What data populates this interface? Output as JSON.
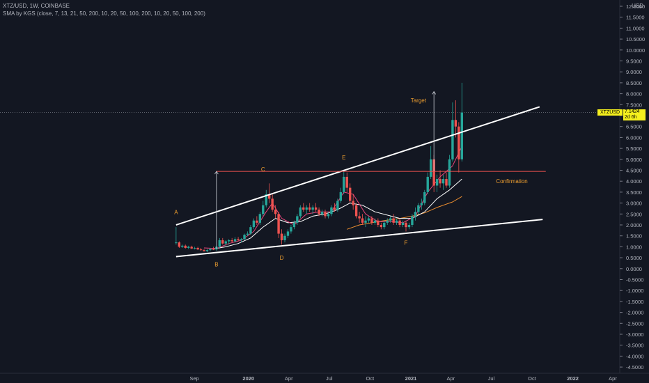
{
  "header": {
    "line1": "XTZ/USD, 1W, COINBASE",
    "line2": "SMA by KGS (close, 7, 13, 21, 50, 200, 10, 20, 50, 100, 200, 10, 20, 50, 100, 200)"
  },
  "axis_unit": "USD",
  "price_tag": {
    "symbol": "XTZUSD",
    "price": "7.1424",
    "countdown": "2d 6h"
  },
  "colors": {
    "background": "#131722",
    "up": "#26a69a",
    "down": "#ef5350",
    "trendline": "#ffffff",
    "confirmation": "#ef5350",
    "label": "#f0a030",
    "sma_pink": "#e8457a",
    "sma_white": "#ffffff",
    "sma_orange": "#f09030",
    "axis_text": "#b2b5be"
  },
  "chart_data": {
    "type": "candlestick",
    "y_ticks": [
      "12.0000",
      "11.5000",
      "11.0000",
      "10.5000",
      "10.0000",
      "9.5000",
      "9.0000",
      "8.5000",
      "8.0000",
      "7.5000",
      "7.0000",
      "6.5000",
      "6.0000",
      "5.5000",
      "5.0000",
      "4.5000",
      "4.0000",
      "3.5000",
      "3.0000",
      "2.5000",
      "2.0000",
      "1.5000",
      "1.0000",
      "0.5000",
      "0.0000",
      "-0.5000",
      "-1.0000",
      "-1.5000",
      "-2.0000",
      "-2.5000",
      "-3.0000",
      "-3.5000",
      "-4.0000",
      "-4.5000"
    ],
    "ylim": [
      -4.8,
      12.3
    ],
    "x_ticks": [
      {
        "label": "Sep",
        "date": "2019-09-01"
      },
      {
        "label": "2020",
        "date": "2020-01-01"
      },
      {
        "label": "Apr",
        "date": "2020-04-01"
      },
      {
        "label": "Jul",
        "date": "2020-07-01"
      },
      {
        "label": "Oct",
        "date": "2020-10-01"
      },
      {
        "label": "2021",
        "date": "2021-01-01"
      },
      {
        "label": "Apr",
        "date": "2021-04-01"
      },
      {
        "label": "Jul",
        "date": "2021-07-01"
      },
      {
        "label": "Oct",
        "date": "2021-10-01"
      },
      {
        "label": "2022",
        "date": "2022-01-01"
      },
      {
        "label": "Apr",
        "date": "2022-04-01"
      }
    ],
    "candles": [
      {
        "d": "2019-07-22",
        "o": 1.2,
        "h": 1.9,
        "l": 1.1,
        "c": 1.2
      },
      {
        "d": "2019-07-29",
        "o": 1.2,
        "h": 1.25,
        "l": 0.95,
        "c": 1.0
      },
      {
        "d": "2019-08-05",
        "o": 1.0,
        "h": 1.1,
        "l": 0.95,
        "c": 1.05
      },
      {
        "d": "2019-08-12",
        "o": 1.05,
        "h": 1.1,
        "l": 0.92,
        "c": 0.95
      },
      {
        "d": "2019-08-19",
        "o": 0.95,
        "h": 1.05,
        "l": 0.9,
        "c": 1.0
      },
      {
        "d": "2019-08-26",
        "o": 1.0,
        "h": 1.05,
        "l": 0.9,
        "c": 0.92
      },
      {
        "d": "2019-09-02",
        "o": 0.92,
        "h": 1.0,
        "l": 0.88,
        "c": 0.95
      },
      {
        "d": "2019-09-09",
        "o": 0.95,
        "h": 1.0,
        "l": 0.85,
        "c": 0.88
      },
      {
        "d": "2019-09-16",
        "o": 0.88,
        "h": 0.95,
        "l": 0.82,
        "c": 0.85
      },
      {
        "d": "2019-09-23",
        "o": 0.85,
        "h": 0.9,
        "l": 0.78,
        "c": 0.8
      },
      {
        "d": "2019-09-30",
        "o": 0.8,
        "h": 0.9,
        "l": 0.75,
        "c": 0.85
      },
      {
        "d": "2019-10-07",
        "o": 0.85,
        "h": 0.95,
        "l": 0.8,
        "c": 0.9
      },
      {
        "d": "2019-10-14",
        "o": 0.9,
        "h": 1.0,
        "l": 0.85,
        "c": 0.88
      },
      {
        "d": "2019-10-21",
        "o": 0.88,
        "h": 1.05,
        "l": 0.82,
        "c": 1.0
      },
      {
        "d": "2019-10-28",
        "o": 1.0,
        "h": 1.4,
        "l": 0.95,
        "c": 1.3
      },
      {
        "d": "2019-11-04",
        "o": 1.3,
        "h": 1.4,
        "l": 1.1,
        "c": 1.15
      },
      {
        "d": "2019-11-11",
        "o": 1.15,
        "h": 1.3,
        "l": 1.05,
        "c": 1.25
      },
      {
        "d": "2019-11-18",
        "o": 1.25,
        "h": 1.35,
        "l": 1.1,
        "c": 1.3
      },
      {
        "d": "2019-11-25",
        "o": 1.3,
        "h": 1.4,
        "l": 1.2,
        "c": 1.25
      },
      {
        "d": "2019-12-02",
        "o": 1.25,
        "h": 1.45,
        "l": 1.2,
        "c": 1.35
      },
      {
        "d": "2019-12-09",
        "o": 1.35,
        "h": 1.45,
        "l": 1.25,
        "c": 1.3
      },
      {
        "d": "2019-12-16",
        "o": 1.3,
        "h": 1.4,
        "l": 1.2,
        "c": 1.35
      },
      {
        "d": "2019-12-23",
        "o": 1.35,
        "h": 1.6,
        "l": 1.3,
        "c": 1.55
      },
      {
        "d": "2019-12-30",
        "o": 1.55,
        "h": 1.7,
        "l": 1.5,
        "c": 1.6
      },
      {
        "d": "2020-01-06",
        "o": 1.6,
        "h": 2.0,
        "l": 1.55,
        "c": 1.9
      },
      {
        "d": "2020-01-13",
        "o": 1.9,
        "h": 2.3,
        "l": 1.8,
        "c": 2.2
      },
      {
        "d": "2020-01-20",
        "o": 2.2,
        "h": 2.4,
        "l": 2.0,
        "c": 2.1
      },
      {
        "d": "2020-01-27",
        "o": 2.1,
        "h": 2.6,
        "l": 2.0,
        "c": 2.5
      },
      {
        "d": "2020-02-03",
        "o": 2.5,
        "h": 3.1,
        "l": 2.4,
        "c": 2.9
      },
      {
        "d": "2020-02-10",
        "o": 2.9,
        "h": 3.6,
        "l": 2.8,
        "c": 3.4
      },
      {
        "d": "2020-02-17",
        "o": 3.4,
        "h": 3.9,
        "l": 3.0,
        "c": 3.2
      },
      {
        "d": "2020-02-24",
        "o": 3.2,
        "h": 3.4,
        "l": 2.6,
        "c": 2.7
      },
      {
        "d": "2020-03-02",
        "o": 2.7,
        "h": 2.9,
        "l": 2.3,
        "c": 2.5
      },
      {
        "d": "2020-03-09",
        "o": 2.5,
        "h": 2.6,
        "l": 1.4,
        "c": 1.6
      },
      {
        "d": "2020-03-16",
        "o": 1.6,
        "h": 1.8,
        "l": 1.1,
        "c": 1.3
      },
      {
        "d": "2020-03-23",
        "o": 1.3,
        "h": 1.6,
        "l": 1.2,
        "c": 1.5
      },
      {
        "d": "2020-03-30",
        "o": 1.5,
        "h": 1.8,
        "l": 1.4,
        "c": 1.7
      },
      {
        "d": "2020-04-06",
        "o": 1.7,
        "h": 2.0,
        "l": 1.6,
        "c": 1.9
      },
      {
        "d": "2020-04-13",
        "o": 1.9,
        "h": 2.2,
        "l": 1.8,
        "c": 2.1
      },
      {
        "d": "2020-04-20",
        "o": 2.1,
        "h": 2.5,
        "l": 2.0,
        "c": 2.4
      },
      {
        "d": "2020-04-27",
        "o": 2.4,
        "h": 2.9,
        "l": 2.3,
        "c": 2.8
      },
      {
        "d": "2020-05-04",
        "o": 2.8,
        "h": 3.0,
        "l": 2.6,
        "c": 2.7
      },
      {
        "d": "2020-05-11",
        "o": 2.7,
        "h": 2.9,
        "l": 2.5,
        "c": 2.8
      },
      {
        "d": "2020-05-18",
        "o": 2.8,
        "h": 3.0,
        "l": 2.6,
        "c": 2.7
      },
      {
        "d": "2020-05-25",
        "o": 2.7,
        "h": 2.9,
        "l": 2.5,
        "c": 2.8
      },
      {
        "d": "2020-06-01",
        "o": 2.8,
        "h": 3.0,
        "l": 2.6,
        "c": 2.7
      },
      {
        "d": "2020-06-08",
        "o": 2.7,
        "h": 2.8,
        "l": 2.4,
        "c": 2.5
      },
      {
        "d": "2020-06-15",
        "o": 2.5,
        "h": 2.7,
        "l": 2.4,
        "c": 2.6
      },
      {
        "d": "2020-06-22",
        "o": 2.6,
        "h": 2.7,
        "l": 2.3,
        "c": 2.4
      },
      {
        "d": "2020-06-29",
        "o": 2.4,
        "h": 2.6,
        "l": 2.3,
        "c": 2.5
      },
      {
        "d": "2020-07-06",
        "o": 2.5,
        "h": 2.9,
        "l": 2.4,
        "c": 2.8
      },
      {
        "d": "2020-07-13",
        "o": 2.8,
        "h": 3.0,
        "l": 2.6,
        "c": 2.7
      },
      {
        "d": "2020-07-20",
        "o": 2.7,
        "h": 3.2,
        "l": 2.6,
        "c": 3.1
      },
      {
        "d": "2020-07-27",
        "o": 3.1,
        "h": 3.7,
        "l": 3.0,
        "c": 3.5
      },
      {
        "d": "2020-08-03",
        "o": 3.5,
        "h": 4.5,
        "l": 3.4,
        "c": 4.2
      },
      {
        "d": "2020-08-10",
        "o": 4.2,
        "h": 4.4,
        "l": 3.5,
        "c": 3.7
      },
      {
        "d": "2020-08-17",
        "o": 3.7,
        "h": 3.9,
        "l": 3.0,
        "c": 3.1
      },
      {
        "d": "2020-08-24",
        "o": 3.1,
        "h": 3.4,
        "l": 2.7,
        "c": 2.9
      },
      {
        "d": "2020-08-31",
        "o": 2.9,
        "h": 3.0,
        "l": 2.3,
        "c": 2.4
      },
      {
        "d": "2020-09-07",
        "o": 2.4,
        "h": 2.6,
        "l": 2.1,
        "c": 2.3
      },
      {
        "d": "2020-09-14",
        "o": 2.3,
        "h": 2.5,
        "l": 2.0,
        "c": 2.1
      },
      {
        "d": "2020-09-21",
        "o": 2.1,
        "h": 2.4,
        "l": 1.9,
        "c": 2.2
      },
      {
        "d": "2020-09-28",
        "o": 2.2,
        "h": 2.4,
        "l": 2.1,
        "c": 2.3
      },
      {
        "d": "2020-10-05",
        "o": 2.3,
        "h": 2.4,
        "l": 2.0,
        "c": 2.1
      },
      {
        "d": "2020-10-12",
        "o": 2.1,
        "h": 2.3,
        "l": 2.0,
        "c": 2.2
      },
      {
        "d": "2020-10-19",
        "o": 2.2,
        "h": 2.3,
        "l": 1.9,
        "c": 2.0
      },
      {
        "d": "2020-10-26",
        "o": 2.0,
        "h": 2.1,
        "l": 1.8,
        "c": 1.9
      },
      {
        "d": "2020-11-02",
        "o": 1.9,
        "h": 2.2,
        "l": 1.8,
        "c": 2.1
      },
      {
        "d": "2020-11-09",
        "o": 2.1,
        "h": 2.3,
        "l": 2.0,
        "c": 2.2
      },
      {
        "d": "2020-11-16",
        "o": 2.2,
        "h": 2.4,
        "l": 2.1,
        "c": 2.3
      },
      {
        "d": "2020-11-23",
        "o": 2.3,
        "h": 2.5,
        "l": 2.0,
        "c": 2.1
      },
      {
        "d": "2020-11-30",
        "o": 2.1,
        "h": 2.3,
        "l": 2.0,
        "c": 2.2
      },
      {
        "d": "2020-12-07",
        "o": 2.2,
        "h": 2.3,
        "l": 1.9,
        "c": 2.0
      },
      {
        "d": "2020-12-14",
        "o": 2.0,
        "h": 2.2,
        "l": 1.9,
        "c": 2.1
      },
      {
        "d": "2020-12-21",
        "o": 2.1,
        "h": 2.2,
        "l": 1.7,
        "c": 1.9
      },
      {
        "d": "2020-12-28",
        "o": 1.9,
        "h": 2.1,
        "l": 1.8,
        "c": 2.0
      },
      {
        "d": "2021-01-04",
        "o": 2.0,
        "h": 2.5,
        "l": 1.9,
        "c": 2.4
      },
      {
        "d": "2021-01-11",
        "o": 2.4,
        "h": 2.8,
        "l": 2.2,
        "c": 2.6
      },
      {
        "d": "2021-01-18",
        "o": 2.6,
        "h": 3.0,
        "l": 2.5,
        "c": 2.9
      },
      {
        "d": "2021-01-25",
        "o": 2.9,
        "h": 3.2,
        "l": 2.7,
        "c": 3.0
      },
      {
        "d": "2021-02-01",
        "o": 3.0,
        "h": 3.6,
        "l": 2.9,
        "c": 3.5
      },
      {
        "d": "2021-02-08",
        "o": 3.5,
        "h": 4.4,
        "l": 3.4,
        "c": 4.2
      },
      {
        "d": "2021-02-15",
        "o": 4.2,
        "h": 5.6,
        "l": 4.1,
        "c": 5.0
      },
      {
        "d": "2021-02-22",
        "o": 5.0,
        "h": 5.2,
        "l": 3.5,
        "c": 3.8
      },
      {
        "d": "2021-03-01",
        "o": 3.8,
        "h": 4.3,
        "l": 3.5,
        "c": 4.1
      },
      {
        "d": "2021-03-08",
        "o": 4.1,
        "h": 4.5,
        "l": 3.7,
        "c": 3.9
      },
      {
        "d": "2021-03-15",
        "o": 3.9,
        "h": 4.3,
        "l": 3.6,
        "c": 4.1
      },
      {
        "d": "2021-03-22",
        "o": 4.1,
        "h": 4.4,
        "l": 3.7,
        "c": 3.8
      },
      {
        "d": "2021-03-29",
        "o": 3.8,
        "h": 5.2,
        "l": 3.7,
        "c": 5.0
      },
      {
        "d": "2021-04-05",
        "o": 5.0,
        "h": 7.6,
        "l": 4.9,
        "c": 6.8
      },
      {
        "d": "2021-04-12",
        "o": 6.8,
        "h": 7.7,
        "l": 6.0,
        "c": 6.5
      },
      {
        "d": "2021-04-19",
        "o": 6.5,
        "h": 6.7,
        "l": 4.4,
        "c": 5.0
      },
      {
        "d": "2021-04-26",
        "o": 5.0,
        "h": 8.5,
        "l": 4.9,
        "c": 7.14
      }
    ],
    "sma_pink": [
      [
        "2019-09-23",
        0.95
      ],
      [
        "2019-10-21",
        0.92
      ],
      [
        "2019-11-18",
        1.15
      ],
      [
        "2019-12-16",
        1.3
      ],
      [
        "2020-01-13",
        1.7
      ],
      [
        "2020-02-10",
        2.6
      ],
      [
        "2020-02-24",
        3.0
      ],
      [
        "2020-03-16",
        2.3
      ],
      [
        "2020-04-13",
        2.0
      ],
      [
        "2020-05-11",
        2.5
      ],
      [
        "2020-06-08",
        2.6
      ],
      [
        "2020-07-06",
        2.6
      ],
      [
        "2020-08-03",
        3.5
      ],
      [
        "2020-08-24",
        3.4
      ],
      [
        "2020-09-21",
        2.5
      ],
      [
        "2020-10-19",
        2.15
      ],
      [
        "2020-11-16",
        2.15
      ],
      [
        "2020-12-14",
        2.1
      ],
      [
        "2021-01-11",
        2.4
      ],
      [
        "2021-02-08",
        3.5
      ],
      [
        "2021-03-08",
        4.2
      ],
      [
        "2021-04-05",
        4.7
      ],
      [
        "2021-04-26",
        5.6
      ]
    ],
    "sma_white": [
      [
        "2019-10-14",
        0.9
      ],
      [
        "2019-11-11",
        1.0
      ],
      [
        "2019-12-09",
        1.15
      ],
      [
        "2020-01-06",
        1.4
      ],
      [
        "2020-02-03",
        1.9
      ],
      [
        "2020-03-02",
        2.3
      ],
      [
        "2020-03-30",
        2.1
      ],
      [
        "2020-04-27",
        2.15
      ],
      [
        "2020-05-25",
        2.4
      ],
      [
        "2020-06-22",
        2.5
      ],
      [
        "2020-07-20",
        2.7
      ],
      [
        "2020-08-17",
        3.0
      ],
      [
        "2020-09-14",
        2.9
      ],
      [
        "2020-10-12",
        2.6
      ],
      [
        "2020-11-09",
        2.45
      ],
      [
        "2020-12-07",
        2.3
      ],
      [
        "2021-01-04",
        2.3
      ],
      [
        "2021-02-01",
        2.6
      ],
      [
        "2021-03-01",
        3.2
      ],
      [
        "2021-03-29",
        3.6
      ],
      [
        "2021-04-26",
        4.1
      ]
    ],
    "sma_orange": [
      [
        "2020-08-10",
        1.8
      ],
      [
        "2020-09-07",
        2.0
      ],
      [
        "2020-10-05",
        2.1
      ],
      [
        "2020-11-02",
        2.2
      ],
      [
        "2020-12-07",
        2.3
      ],
      [
        "2021-01-04",
        2.4
      ],
      [
        "2021-02-01",
        2.55
      ],
      [
        "2021-03-01",
        2.8
      ],
      [
        "2021-04-05",
        3.05
      ],
      [
        "2021-04-26",
        3.3
      ]
    ],
    "trendlines": [
      {
        "name": "upper",
        "from": [
          "2019-07-22",
          2.0
        ],
        "to": [
          "2021-10-18",
          7.4
        ]
      },
      {
        "name": "lower",
        "from": [
          "2019-07-22",
          0.55
        ],
        "to": [
          "2021-10-25",
          2.25
        ]
      }
    ],
    "confirmation_line": {
      "price": 4.45,
      "from": "2019-10-21",
      "to": "2021-11-01",
      "label": "Confirmation"
    },
    "arrows": [
      {
        "x": "2019-10-21",
        "from": 0.9,
        "to": 4.45
      },
      {
        "x": "2021-02-22",
        "from": 4.45,
        "to": 8.1
      }
    ],
    "annotations": [
      {
        "text": "A",
        "d": "2019-07-22",
        "p": 2.5
      },
      {
        "text": "B",
        "d": "2019-10-21",
        "p": 0.1
      },
      {
        "text": "C",
        "d": "2020-02-03",
        "p": 4.45
      },
      {
        "text": "D",
        "d": "2020-03-16",
        "p": 0.4
      },
      {
        "text": "E",
        "d": "2020-08-03",
        "p": 5.0
      },
      {
        "text": "F",
        "d": "2020-12-21",
        "p": 1.1
      },
      {
        "text": "Target",
        "d": "2021-01-18",
        "p": 7.6
      }
    ],
    "last_price": 7.1424
  }
}
